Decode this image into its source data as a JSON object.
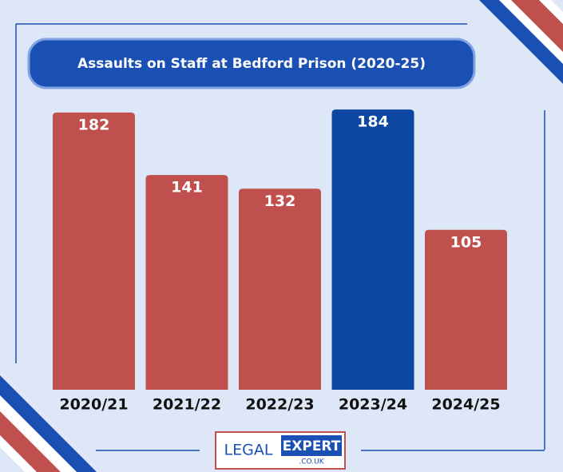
{
  "chart_data": {
    "type": "bar",
    "title": "Assaults on Staff at Bedford Prison (2020-25)",
    "categories": [
      "2020/21",
      "2021/22",
      "2022/23",
      "2023/24",
      "2024/25"
    ],
    "values": [
      182,
      141,
      132,
      184,
      105
    ],
    "colors": [
      "#c0504d",
      "#c0504d",
      "#c0504d",
      "#0d47a1",
      "#c0504d"
    ]
  },
  "logo": {
    "left": "LEGAL",
    "right": "EXPERT",
    "domain": ".CO.UK"
  }
}
